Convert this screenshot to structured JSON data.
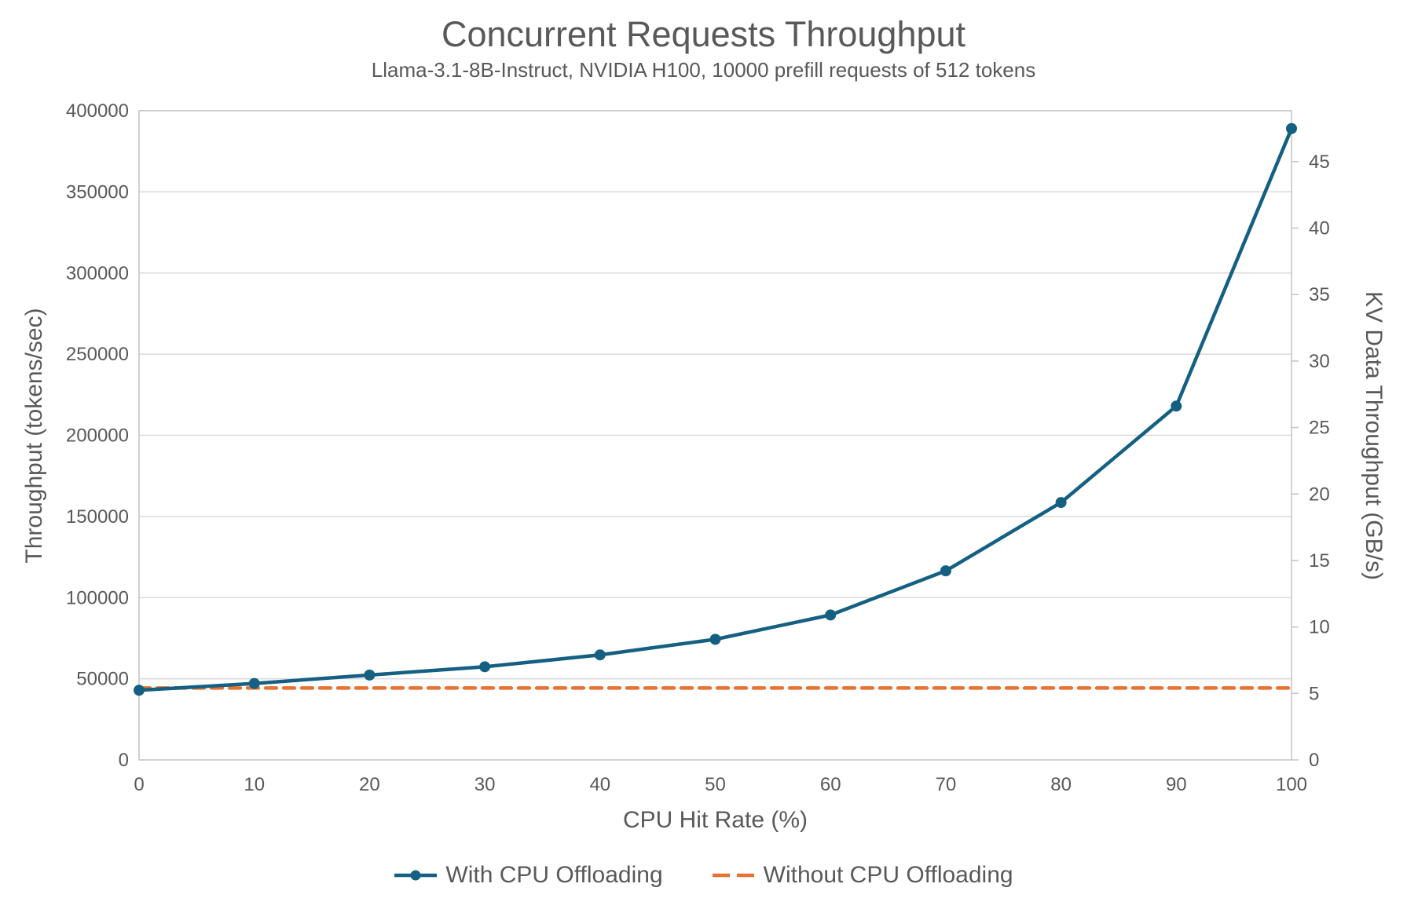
{
  "title": "Concurrent Requests Throughput",
  "subtitle": "Llama-3.1-8B-Instruct, NVIDIA H100, 10000 prefill requests of 512 tokens",
  "chart_data": {
    "type": "line",
    "title": "Concurrent Requests Throughput",
    "subtitle": "Llama-3.1-8B-Instruct, NVIDIA H100, 10000 prefill requests of 512 tokens",
    "xlabel": "CPU Hit Rate (%)",
    "ylabel_left": "Throughput (tokens/sec)",
    "ylabel_right": "KV Data Throughput (GB/s)",
    "x_range": [
      0,
      100
    ],
    "y_left_range": [
      0,
      400000
    ],
    "y_right_range": [
      0,
      48.83
    ],
    "x_ticks": [
      0,
      10,
      20,
      30,
      40,
      50,
      60,
      70,
      80,
      90,
      100
    ],
    "y_left_ticks": [
      0,
      50000,
      100000,
      150000,
      200000,
      250000,
      300000,
      350000,
      400000
    ],
    "y_right_ticks": [
      0,
      5,
      10,
      15,
      20,
      25,
      30,
      35,
      40,
      45
    ],
    "grid": "horizontal",
    "legend_position": "bottom-center",
    "x": [
      0,
      10,
      20,
      30,
      40,
      50,
      60,
      70,
      80,
      90,
      100
    ],
    "series": [
      {
        "name": "With CPU Offloading",
        "color": "#156082",
        "line_style": "solid",
        "marker": "circle",
        "axis": "left",
        "values": [
          42900,
          47100,
          52300,
          57400,
          64700,
          74300,
          89300,
          116500,
          158600,
          218000,
          389000
        ]
      },
      {
        "name": "Without CPU Offloading",
        "color": "#E97132",
        "line_style": "dashed",
        "marker": "none",
        "axis": "left",
        "values": [
          44300,
          44300,
          44300,
          44300,
          44300,
          44300,
          44300,
          44300,
          44300,
          44300,
          44300
        ]
      }
    ],
    "colors": {
      "grid": "#D9D9D9",
      "axis": "#C6C6C6",
      "text": "#595959"
    }
  }
}
